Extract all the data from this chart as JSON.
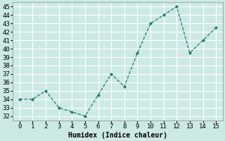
{
  "x": [
    0,
    1,
    2,
    3,
    4,
    5,
    6,
    7,
    8,
    9,
    10,
    11,
    12,
    13,
    14,
    15
  ],
  "y": [
    34,
    34,
    35,
    33,
    32.5,
    32,
    34.5,
    37,
    35.5,
    39.5,
    43,
    44,
    45,
    39.5,
    41,
    42.5
  ],
  "line_color": "#1a7a6e",
  "marker": "D",
  "marker_size": 2.0,
  "bg_color": "#cce9e5",
  "grid_color": "#ffffff",
  "xlabel": "Humidex (Indice chaleur)",
  "xlim": [
    -0.5,
    15.5
  ],
  "ylim": [
    31.5,
    45.5
  ],
  "yticks": [
    32,
    33,
    34,
    35,
    36,
    37,
    38,
    39,
    40,
    41,
    42,
    43,
    44,
    45
  ],
  "xticks": [
    0,
    1,
    2,
    3,
    4,
    5,
    6,
    7,
    8,
    9,
    10,
    11,
    12,
    13,
    14,
    15
  ],
  "xlabel_fontsize": 7,
  "tick_fontsize": 6.5
}
